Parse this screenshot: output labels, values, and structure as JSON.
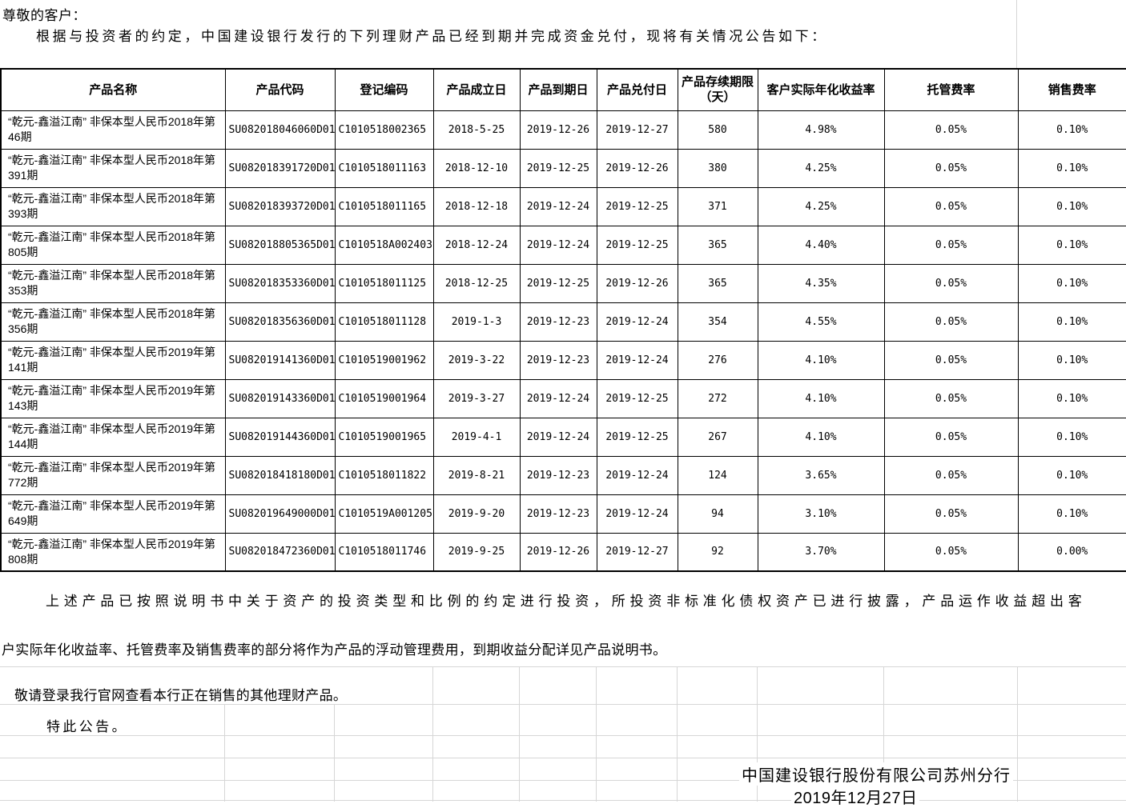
{
  "page": {
    "greeting": "尊敬的客户：",
    "intro": "根据与投资者的约定，中国建设银行发行的下列理财产品已经到期并完成资金兑付，现将有关情况公告如下："
  },
  "table": {
    "columns": [
      "产品名称",
      "产品代码",
      "登记编码",
      "产品成立日",
      "产品到期日",
      "产品兑付日",
      "产品存续期限（天）",
      "客户实际年化收益率",
      "托管费率",
      "销售费率"
    ],
    "rows": [
      [
        "“乾元-鑫溢江南” 非保本型人民币2018年第46期",
        "SU082018046060D01",
        "C1010518002365",
        "2018-5-25",
        "2019-12-26",
        "2019-12-27",
        "580",
        "4.98%",
        "0.05%",
        "0.10%"
      ],
      [
        "“乾元-鑫溢江南” 非保本型人民币2018年第391期",
        "SU082018391720D01",
        "C1010518011163",
        "2018-12-10",
        "2019-12-25",
        "2019-12-26",
        "380",
        "4.25%",
        "0.05%",
        "0.10%"
      ],
      [
        "“乾元-鑫溢江南” 非保本型人民币2018年第393期",
        "SU082018393720D01",
        "C1010518011165",
        "2018-12-18",
        "2019-12-24",
        "2019-12-25",
        "371",
        "4.25%",
        "0.05%",
        "0.10%"
      ],
      [
        "“乾元-鑫溢江南” 非保本型人民币2018年第805期",
        "SU082018805365D01",
        "C1010518A002403",
        "2018-12-24",
        "2019-12-24",
        "2019-12-25",
        "365",
        "4.40%",
        "0.05%",
        "0.10%"
      ],
      [
        "“乾元-鑫溢江南” 非保本型人民币2018年第353期",
        "SU082018353360D01",
        "C1010518011125",
        "2018-12-25",
        "2019-12-25",
        "2019-12-26",
        "365",
        "4.35%",
        "0.05%",
        "0.10%"
      ],
      [
        "“乾元-鑫溢江南” 非保本型人民币2018年第356期",
        "SU082018356360D01",
        "C1010518011128",
        "2019-1-3",
        "2019-12-23",
        "2019-12-24",
        "354",
        "4.55%",
        "0.05%",
        "0.10%"
      ],
      [
        "“乾元-鑫溢江南” 非保本型人民币2019年第141期",
        "SU082019141360D01",
        "C1010519001962",
        "2019-3-22",
        "2019-12-23",
        "2019-12-24",
        "276",
        "4.10%",
        "0.05%",
        "0.10%"
      ],
      [
        "“乾元-鑫溢江南” 非保本型人民币2019年第143期",
        "SU082019143360D01",
        "C1010519001964",
        "2019-3-27",
        "2019-12-24",
        "2019-12-25",
        "272",
        "4.10%",
        "0.05%",
        "0.10%"
      ],
      [
        "“乾元-鑫溢江南” 非保本型人民币2019年第144期",
        "SU082019144360D01",
        "C1010519001965",
        "2019-4-1",
        "2019-12-24",
        "2019-12-25",
        "267",
        "4.10%",
        "0.05%",
        "0.10%"
      ],
      [
        "“乾元-鑫溢江南” 非保本型人民币2019年第772期",
        "SU082018418180D01",
        "C1010518011822",
        "2019-8-21",
        "2019-12-23",
        "2019-12-24",
        "124",
        "3.65%",
        "0.05%",
        "0.10%"
      ],
      [
        "“乾元-鑫溢江南” 非保本型人民币2019年第649期",
        "SU082019649000D01",
        "C1010519A001205",
        "2019-9-20",
        "2019-12-23",
        "2019-12-24",
        "94",
        "3.10%",
        "0.05%",
        "0.10%"
      ],
      [
        "“乾元-鑫溢江南” 非保本型人民币2019年第808期",
        "SU082018472360D01",
        "C1010518011746",
        "2019-9-25",
        "2019-12-26",
        "2019-12-27",
        "92",
        "3.70%",
        "0.05%",
        "0.00%"
      ]
    ]
  },
  "closing": {
    "para1_line1": "上述产品已按照说明书中关于资产的投资类型和比例的约定进行投资，所投资非标准化债权资产已进行披露，产品运作收益超出客",
    "para1_line2": "户实际年化收益率、托管费率及销售费率的部分将作为产品的浮动管理费用，到期收益分配详见产品说明书。",
    "para2": "敬请登录我行官网查看本行正在销售的其他理财产品。",
    "para3": "特此公告。",
    "signature": "中国建设银行股份有限公司苏州分行",
    "date": "2019年12月27日"
  }
}
